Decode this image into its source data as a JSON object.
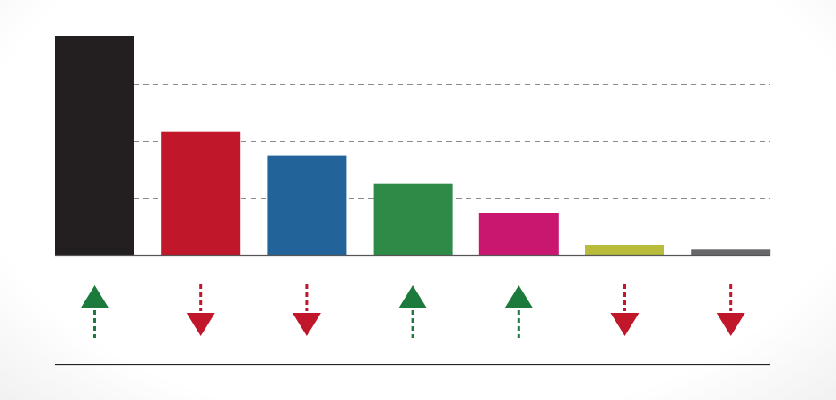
{
  "chart_data": {
    "type": "bar",
    "title": "",
    "xlabel": "",
    "ylabel": "",
    "ylim": [
      0,
      100
    ],
    "grid": true,
    "y_gridlines": [
      25,
      50,
      75,
      100
    ],
    "values": [
      96.5,
      54.5,
      44,
      31.5,
      18.5,
      4.5,
      2.8
    ],
    "colors": [
      "#231f20",
      "#c0172a",
      "#226399",
      "#2e8a47",
      "#c9166f",
      "#b9bc3a",
      "#676769"
    ],
    "trends": [
      "up",
      "down",
      "down",
      "up",
      "up",
      "down",
      "down"
    ],
    "trend_colors": {
      "up": "#1d7a3d",
      "down": "#c0172a"
    }
  }
}
